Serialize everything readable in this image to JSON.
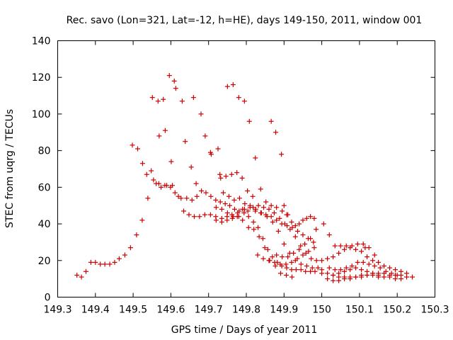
{
  "chart_data": {
    "type": "scatter",
    "title": "Rec. savo (Lon=321, Lat=-12, h=HE), days 149-150, 2011, window 001",
    "xlabel": "GPS time / Days of year 2011",
    "ylabel": "STEC from uqrg / TECUs",
    "xlim": [
      149.3,
      150.3
    ],
    "ylim": [
      0,
      140
    ],
    "x_ticks": [
      "149.3",
      "149.4",
      "149.5",
      "149.6",
      "149.7",
      "149.8",
      "149.9",
      "150",
      "150.1",
      "150.2",
      "150.3"
    ],
    "y_ticks": [
      "0",
      "20",
      "40",
      "60",
      "80",
      "100",
      "120",
      "140"
    ],
    "grid": false,
    "legend": "none",
    "marker": "plus",
    "color": "#cc0000",
    "series": [
      {
        "points": [
          [
            149.351,
            12
          ],
          [
            149.363,
            11
          ],
          [
            149.375,
            14
          ],
          [
            149.388,
            19
          ],
          [
            149.4,
            19
          ],
          [
            149.413,
            18
          ],
          [
            149.425,
            18
          ],
          [
            149.438,
            18
          ],
          [
            149.451,
            19
          ],
          [
            149.463,
            21
          ],
          [
            149.478,
            23
          ],
          [
            149.493,
            27
          ],
          [
            149.509,
            34
          ],
          [
            149.524,
            42
          ],
          [
            149.539,
            54
          ],
          [
            149.554,
            64
          ],
          [
            149.568,
            62
          ],
          [
            149.584,
            61
          ],
          [
            149.599,
            60
          ],
          [
            149.611,
            57
          ],
          [
            149.627,
            54
          ],
          [
            149.642,
            54
          ],
          [
            149.656,
            53
          ],
          [
            149.669,
            55
          ],
          [
            149.681,
            58
          ],
          [
            149.693,
            57
          ],
          [
            149.706,
            55
          ],
          [
            149.719,
            53
          ],
          [
            149.731,
            52
          ],
          [
            149.744,
            51
          ],
          [
            149.756,
            50
          ],
          [
            149.769,
            48
          ],
          [
            149.781,
            47
          ],
          [
            149.794,
            46
          ],
          [
            149.806,
            44
          ],
          [
            149.819,
            41
          ],
          [
            149.831,
            38
          ],
          [
            149.844,
            32
          ],
          [
            149.857,
            26
          ],
          [
            149.869,
            22
          ],
          [
            149.882,
            19
          ],
          [
            149.894,
            17
          ],
          [
            149.907,
            16
          ],
          [
            149.92,
            15
          ],
          [
            149.932,
            15
          ],
          [
            149.945,
            15
          ],
          [
            149.957,
            14
          ],
          [
            149.97,
            14
          ],
          [
            149.982,
            14
          ],
          [
            149.498,
            83
          ],
          [
            149.512,
            81
          ],
          [
            149.525,
            73
          ],
          [
            149.536,
            67
          ],
          [
            149.548,
            69
          ],
          [
            149.561,
            62
          ],
          [
            149.574,
            60
          ],
          [
            149.589,
            61
          ],
          [
            149.604,
            61
          ],
          [
            149.62,
            55
          ],
          [
            149.634,
            47
          ],
          [
            149.648,
            45
          ],
          [
            149.662,
            44
          ],
          [
            149.676,
            44
          ],
          [
            149.69,
            45
          ],
          [
            149.705,
            45
          ],
          [
            149.719,
            44
          ],
          [
            149.735,
            43
          ],
          [
            149.749,
            44
          ],
          [
            149.762,
            45
          ],
          [
            149.776,
            44
          ],
          [
            149.79,
            42
          ],
          [
            149.806,
            38
          ],
          [
            149.82,
            37
          ],
          [
            149.834,
            33
          ],
          [
            149.849,
            27
          ],
          [
            149.862,
            20
          ],
          [
            149.877,
            17
          ],
          [
            149.891,
            13
          ],
          [
            149.906,
            12
          ],
          [
            149.921,
            11
          ],
          [
            149.551,
            109
          ],
          [
            149.566,
            107
          ],
          [
            149.58,
            108
          ],
          [
            149.596,
            121
          ],
          [
            149.609,
            118
          ],
          [
            149.613,
            114
          ],
          [
            149.63,
            107
          ],
          [
            149.66,
            109
          ],
          [
            149.68,
            100
          ],
          [
            149.75,
            115
          ],
          [
            149.765,
            116
          ],
          [
            149.78,
            109
          ],
          [
            149.795,
            107
          ],
          [
            149.808,
            96
          ],
          [
            149.866,
            96
          ],
          [
            149.878,
            90
          ],
          [
            149.893,
            78
          ],
          [
            149.569,
            88
          ],
          [
            149.585,
            91
          ],
          [
            149.601,
            74
          ],
          [
            149.638,
            85
          ],
          [
            149.654,
            71
          ],
          [
            149.667,
            62
          ],
          [
            149.691,
            88
          ],
          [
            149.705,
            79
          ],
          [
            149.707,
            78
          ],
          [
            149.725,
            81
          ],
          [
            149.73,
            67
          ],
          [
            149.732,
            65
          ],
          [
            149.746,
            66
          ],
          [
            149.761,
            67
          ],
          [
            149.775,
            68
          ],
          [
            149.789,
            65
          ],
          [
            149.803,
            58
          ],
          [
            149.817,
            55
          ],
          [
            149.824,
            76
          ],
          [
            149.838,
            59
          ],
          [
            149.852,
            52
          ],
          [
            149.866,
            50
          ],
          [
            149.88,
            49
          ],
          [
            149.895,
            47
          ],
          [
            149.907,
            45
          ],
          [
            149.739,
            57
          ],
          [
            149.754,
            55
          ],
          [
            149.768,
            53
          ],
          [
            149.782,
            54
          ],
          [
            149.796,
            51
          ],
          [
            149.81,
            49
          ],
          [
            149.824,
            47
          ],
          [
            149.838,
            46
          ],
          [
            149.852,
            45
          ],
          [
            149.866,
            44
          ],
          [
            149.88,
            42
          ],
          [
            149.894,
            40
          ],
          [
            149.908,
            39
          ],
          [
            149.922,
            38
          ],
          [
            149.936,
            36
          ],
          [
            149.95,
            34
          ],
          [
            149.964,
            32
          ],
          [
            149.978,
            30
          ],
          [
            149.72,
            42
          ],
          [
            149.735,
            41
          ],
          [
            149.749,
            42
          ],
          [
            149.763,
            43
          ],
          [
            149.777,
            46
          ],
          [
            149.79,
            48
          ],
          [
            149.804,
            47
          ],
          [
            149.818,
            49
          ],
          [
            149.832,
            50
          ],
          [
            149.846,
            49
          ],
          [
            149.86,
            48
          ],
          [
            149.874,
            46
          ],
          [
            149.888,
            43
          ],
          [
            149.902,
            40
          ],
          [
            149.916,
            37
          ],
          [
            149.93,
            33
          ],
          [
            149.944,
            28
          ],
          [
            149.958,
            24
          ],
          [
            149.972,
            21
          ],
          [
            149.986,
            20
          ],
          [
            149.72,
            49
          ],
          [
            149.735,
            48
          ],
          [
            149.75,
            46
          ],
          [
            149.765,
            44
          ],
          [
            149.78,
            44
          ],
          [
            149.795,
            48
          ],
          [
            149.81,
            50
          ],
          [
            149.825,
            48
          ],
          [
            149.84,
            46
          ],
          [
            149.855,
            44
          ],
          [
            149.87,
            41
          ],
          [
            149.885,
            36
          ],
          [
            149.9,
            29
          ],
          [
            149.915,
            24
          ],
          [
            149.93,
            20
          ],
          [
            149.945,
            18
          ],
          [
            149.96,
            17
          ],
          [
            149.975,
            16
          ],
          [
            149.99,
            16
          ],
          [
            149.83,
            23
          ],
          [
            149.845,
            21
          ],
          [
            149.86,
            20
          ],
          [
            149.875,
            19
          ],
          [
            149.89,
            18
          ],
          [
            149.905,
            18
          ],
          [
            149.92,
            19
          ],
          [
            149.935,
            21
          ],
          [
            149.95,
            23
          ],
          [
            149.965,
            25
          ],
          [
            149.98,
            27
          ],
          [
            149.88,
            23
          ],
          [
            149.895,
            22
          ],
          [
            149.91,
            22
          ],
          [
            149.925,
            24
          ],
          [
            149.94,
            26
          ],
          [
            149.955,
            29
          ],
          [
            149.97,
            32
          ],
          [
            149.9,
            50
          ],
          [
            149.91,
            45
          ],
          [
            149.92,
            41
          ],
          [
            149.93,
            39
          ],
          [
            149.94,
            40
          ],
          [
            149.95,
            42
          ],
          [
            149.96,
            43
          ],
          [
            149.97,
            44
          ],
          [
            149.98,
            43
          ],
          [
            149.985,
            37
          ],
          [
            150.005,
            40
          ],
          [
            150.02,
            34
          ],
          [
            150.035,
            28
          ],
          [
            150.05,
            28
          ],
          [
            150.065,
            28
          ],
          [
            150.08,
            28
          ],
          [
            150.095,
            29
          ],
          [
            150.11,
            29
          ],
          [
            150.115,
            27
          ],
          [
            150.125,
            27
          ],
          [
            150.14,
            23
          ],
          [
            150.0,
            15
          ],
          [
            150.015,
            13
          ],
          [
            150.03,
            12
          ],
          [
            150.045,
            11
          ],
          [
            150.06,
            11
          ],
          [
            150.075,
            11
          ],
          [
            150.09,
            11
          ],
          [
            150.105,
            12
          ],
          [
            150.12,
            12
          ],
          [
            150.135,
            13
          ],
          [
            150.15,
            13
          ],
          [
            150.165,
            13
          ],
          [
            150.18,
            12
          ],
          [
            150.195,
            12
          ],
          [
            150.21,
            12
          ],
          [
            150.225,
            11
          ],
          [
            150.24,
            11
          ],
          [
            150.0,
            13
          ],
          [
            150.015,
            10
          ],
          [
            150.03,
            9
          ],
          [
            150.045,
            9
          ],
          [
            150.06,
            10
          ],
          [
            150.075,
            10
          ],
          [
            150.09,
            11
          ],
          [
            150.105,
            11
          ],
          [
            150.12,
            12
          ],
          [
            150.135,
            12
          ],
          [
            150.15,
            11
          ],
          [
            150.165,
            11
          ],
          [
            150.18,
            11
          ],
          [
            150.195,
            10
          ],
          [
            150.21,
            10
          ],
          [
            150.0,
            20
          ],
          [
            150.015,
            21
          ],
          [
            150.03,
            22
          ],
          [
            150.045,
            24
          ],
          [
            150.06,
            26
          ],
          [
            150.075,
            27
          ],
          [
            150.09,
            26
          ],
          [
            150.105,
            25
          ],
          [
            150.12,
            22
          ],
          [
            150.135,
            20
          ],
          [
            150.15,
            19
          ],
          [
            150.165,
            17
          ],
          [
            150.18,
            16
          ],
          [
            150.195,
            15
          ],
          [
            150.21,
            14
          ],
          [
            150.225,
            13
          ],
          [
            150.02,
            16
          ],
          [
            150.035,
            15
          ],
          [
            150.05,
            15
          ],
          [
            150.065,
            16
          ],
          [
            150.08,
            17
          ],
          [
            150.095,
            19
          ],
          [
            150.11,
            19
          ],
          [
            150.125,
            18
          ],
          [
            150.14,
            17
          ],
          [
            150.155,
            16
          ],
          [
            150.17,
            14
          ],
          [
            150.185,
            13
          ],
          [
            150.2,
            12
          ],
          [
            150.03,
            12
          ],
          [
            150.045,
            13
          ],
          [
            150.06,
            14
          ],
          [
            150.075,
            15
          ],
          [
            150.09,
            16
          ],
          [
            150.105,
            15
          ],
          [
            150.12,
            14
          ],
          [
            150.135,
            13
          ],
          [
            150.15,
            12
          ]
        ]
      }
    ]
  }
}
